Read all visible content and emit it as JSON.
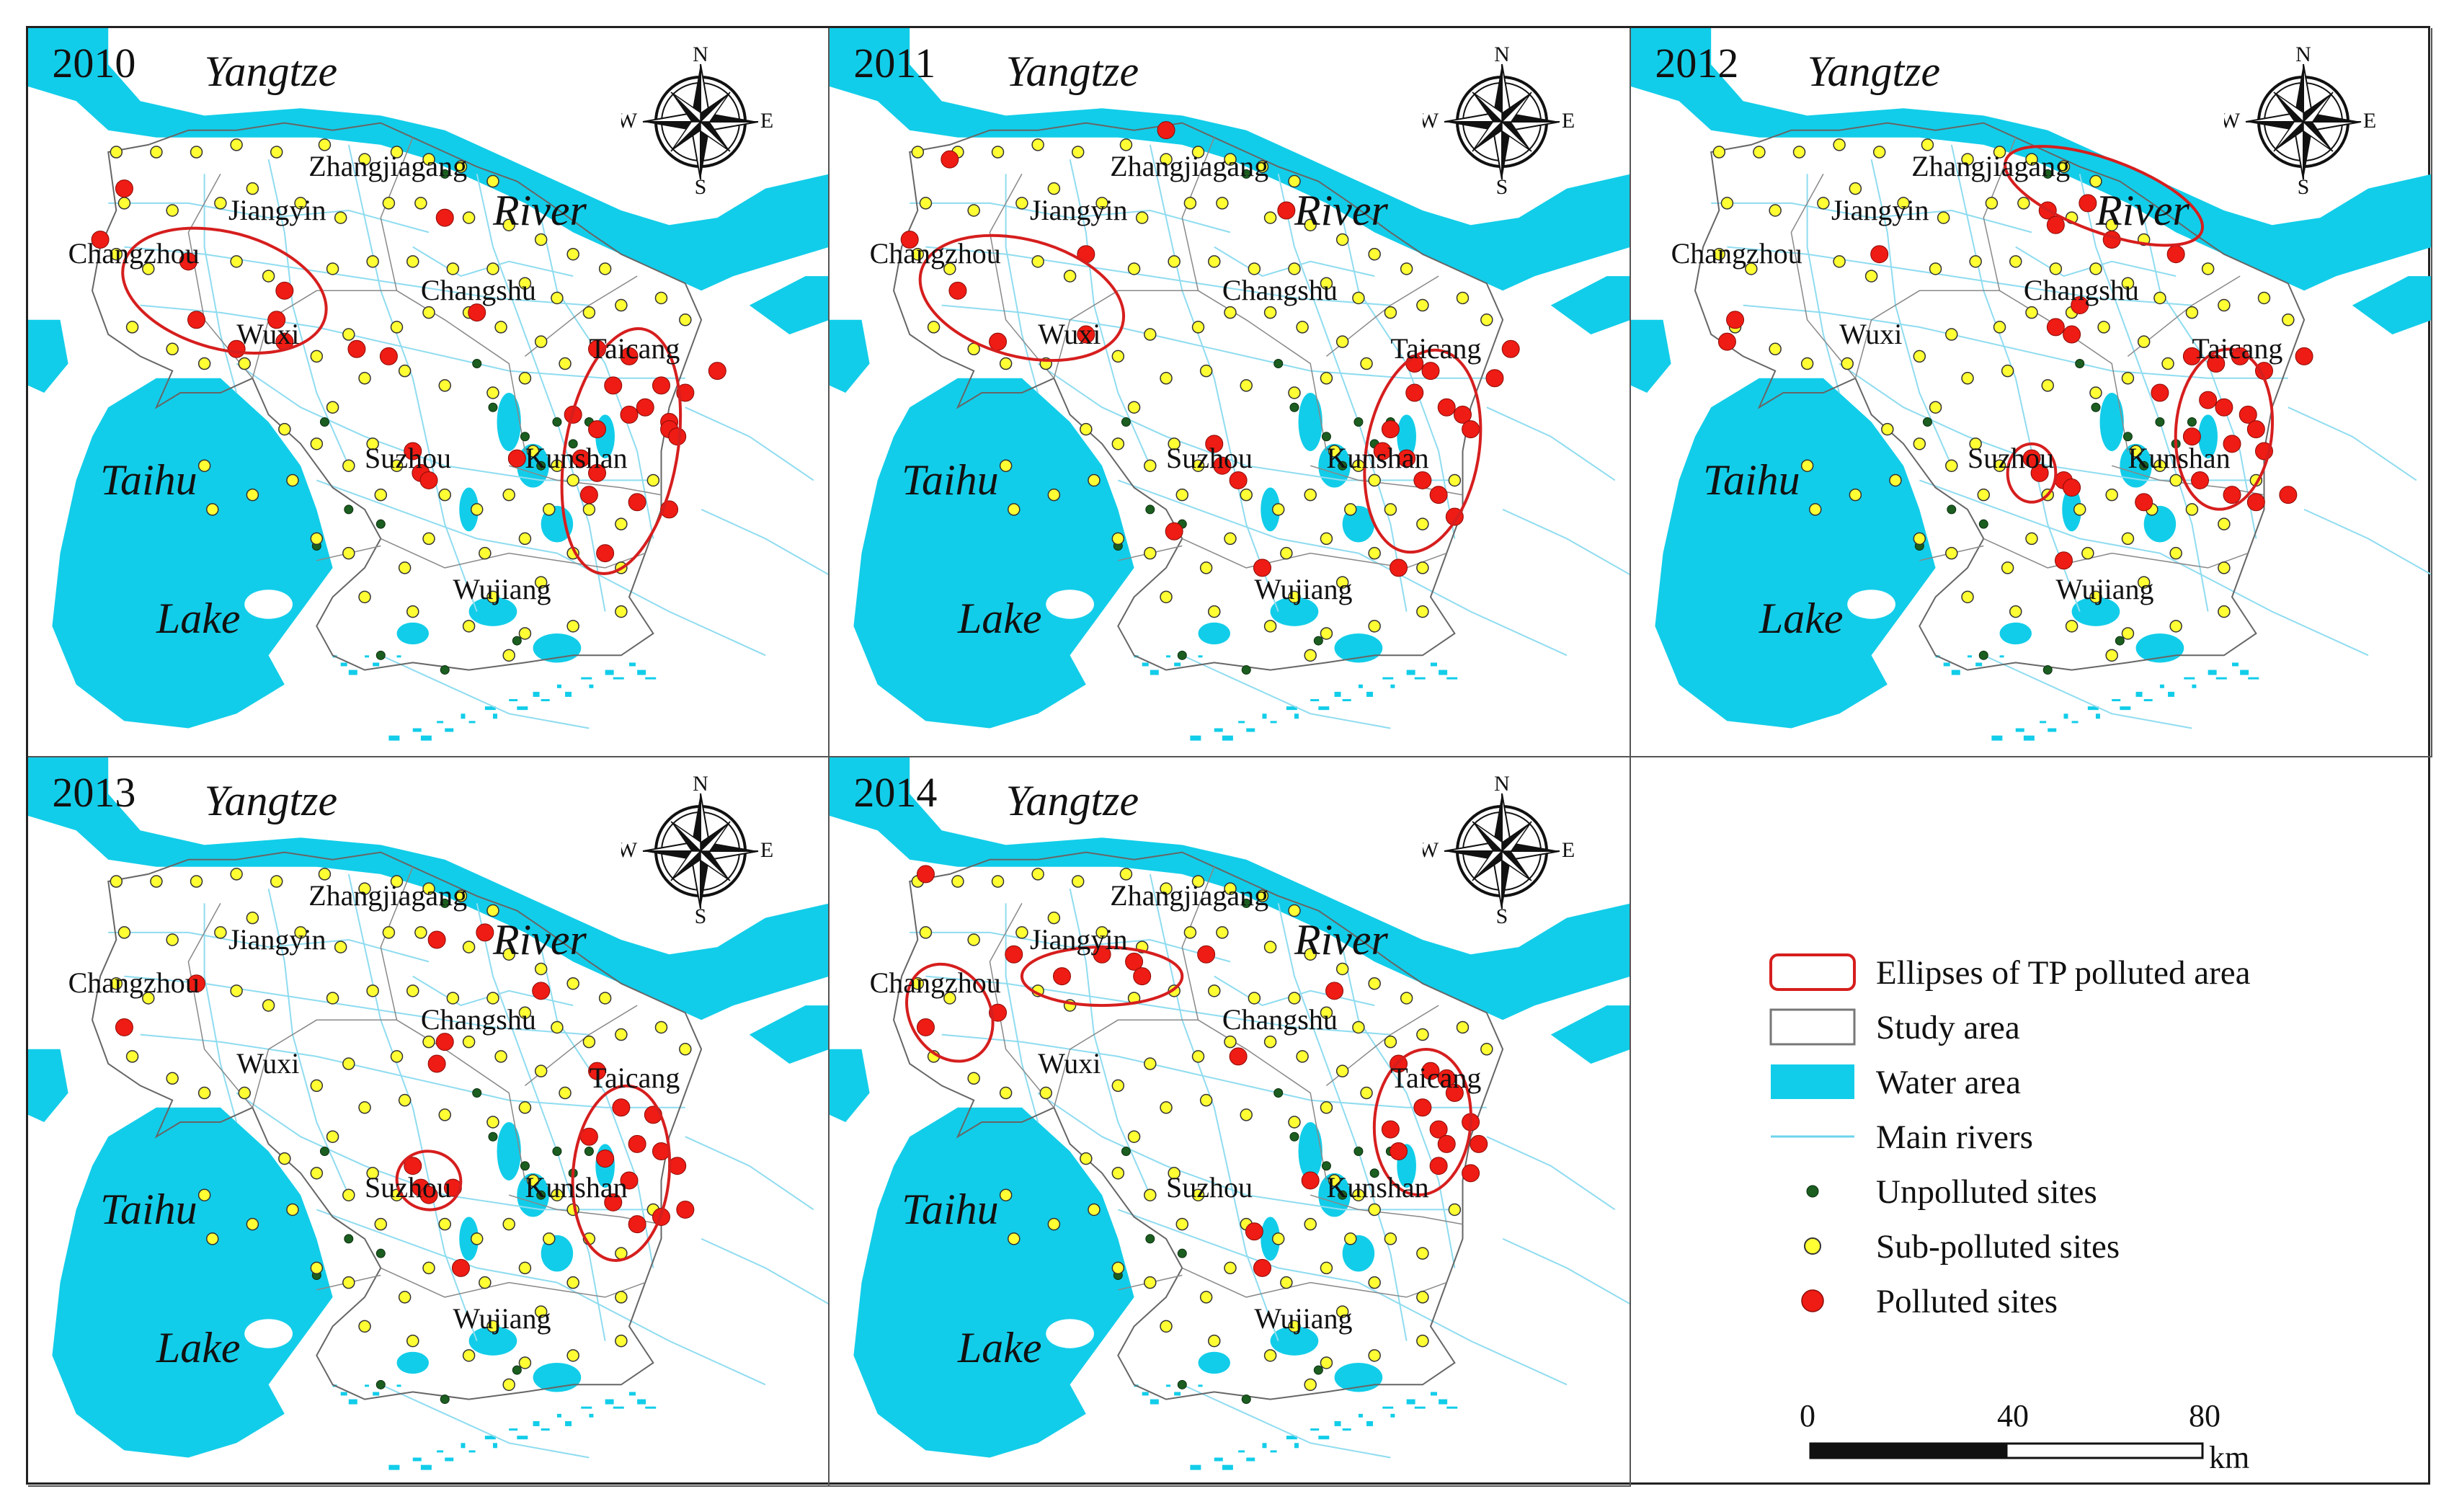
{
  "panels": [
    {
      "year": "2010",
      "polluted": [
        [
          0.12,
          0.22
        ],
        [
          0.09,
          0.29
        ],
        [
          0.2,
          0.32
        ],
        [
          0.32,
          0.36
        ],
        [
          0.31,
          0.4
        ],
        [
          0.21,
          0.4
        ],
        [
          0.32,
          0.43
        ],
        [
          0.26,
          0.44
        ],
        [
          0.41,
          0.44
        ],
        [
          0.45,
          0.45
        ],
        [
          0.52,
          0.26
        ],
        [
          0.56,
          0.39
        ],
        [
          0.71,
          0.44
        ],
        [
          0.75,
          0.45
        ],
        [
          0.73,
          0.49
        ],
        [
          0.79,
          0.49
        ],
        [
          0.77,
          0.52
        ],
        [
          0.82,
          0.5
        ],
        [
          0.86,
          0.47
        ],
        [
          0.68,
          0.53
        ],
        [
          0.71,
          0.55
        ],
        [
          0.75,
          0.53
        ],
        [
          0.8,
          0.54
        ],
        [
          0.8,
          0.55
        ],
        [
          0.81,
          0.56
        ],
        [
          0.69,
          0.59
        ],
        [
          0.71,
          0.61
        ],
        [
          0.7,
          0.64
        ],
        [
          0.76,
          0.65
        ],
        [
          0.8,
          0.66
        ],
        [
          0.72,
          0.72
        ],
        [
          0.48,
          0.58
        ],
        [
          0.49,
          0.61
        ],
        [
          0.5,
          0.62
        ],
        [
          0.61,
          0.59
        ]
      ],
      "ellipses": [
        [
          0.245,
          0.36,
          0.13,
          0.08,
          15
        ],
        [
          0.74,
          0.58,
          0.07,
          0.17,
          10
        ]
      ]
    },
    {
      "year": "2011",
      "polluted": [
        [
          0.15,
          0.18
        ],
        [
          0.1,
          0.29
        ],
        [
          0.16,
          0.36
        ],
        [
          0.32,
          0.31
        ],
        [
          0.42,
          0.14
        ],
        [
          0.57,
          0.25
        ],
        [
          0.21,
          0.43
        ],
        [
          0.32,
          0.42
        ],
        [
          0.73,
          0.46
        ],
        [
          0.75,
          0.47
        ],
        [
          0.73,
          0.5
        ],
        [
          0.77,
          0.52
        ],
        [
          0.79,
          0.53
        ],
        [
          0.8,
          0.55
        ],
        [
          0.83,
          0.48
        ],
        [
          0.85,
          0.44
        ],
        [
          0.7,
          0.55
        ],
        [
          0.69,
          0.58
        ],
        [
          0.72,
          0.59
        ],
        [
          0.74,
          0.62
        ],
        [
          0.76,
          0.64
        ],
        [
          0.78,
          0.67
        ],
        [
          0.48,
          0.57
        ],
        [
          0.49,
          0.6
        ],
        [
          0.51,
          0.62
        ],
        [
          0.43,
          0.69
        ],
        [
          0.54,
          0.74
        ],
        [
          0.71,
          0.74
        ]
      ],
      "ellipses": [
        [
          0.24,
          0.37,
          0.13,
          0.08,
          15
        ],
        [
          0.74,
          0.58,
          0.07,
          0.14,
          10
        ]
      ]
    },
    {
      "year": "2012",
      "polluted": [
        [
          0.31,
          0.31
        ],
        [
          0.13,
          0.4
        ],
        [
          0.12,
          0.43
        ],
        [
          0.52,
          0.25
        ],
        [
          0.53,
          0.27
        ],
        [
          0.57,
          0.24
        ],
        [
          0.6,
          0.29
        ],
        [
          0.68,
          0.31
        ],
        [
          0.53,
          0.41
        ],
        [
          0.55,
          0.42
        ],
        [
          0.56,
          0.38
        ],
        [
          0.7,
          0.45
        ],
        [
          0.73,
          0.46
        ],
        [
          0.76,
          0.45
        ],
        [
          0.79,
          0.47
        ],
        [
          0.84,
          0.45
        ],
        [
          0.66,
          0.5
        ],
        [
          0.72,
          0.51
        ],
        [
          0.74,
          0.52
        ],
        [
          0.77,
          0.53
        ],
        [
          0.7,
          0.56
        ],
        [
          0.75,
          0.57
        ],
        [
          0.78,
          0.55
        ],
        [
          0.79,
          0.58
        ],
        [
          0.71,
          0.62
        ],
        [
          0.75,
          0.64
        ],
        [
          0.78,
          0.65
        ],
        [
          0.82,
          0.64
        ],
        [
          0.64,
          0.65
        ],
        [
          0.5,
          0.59
        ],
        [
          0.51,
          0.61
        ],
        [
          0.54,
          0.62
        ],
        [
          0.55,
          0.63
        ],
        [
          0.54,
          0.73
        ]
      ],
      "ellipses": [
        [
          0.59,
          0.23,
          0.13,
          0.05,
          20
        ],
        [
          0.74,
          0.55,
          0.06,
          0.11,
          5
        ],
        [
          0.5,
          0.61,
          0.03,
          0.04,
          0
        ]
      ]
    },
    {
      "year": "2013",
      "polluted": [
        [
          0.21,
          0.31
        ],
        [
          0.12,
          0.37
        ],
        [
          0.51,
          0.25
        ],
        [
          0.57,
          0.24
        ],
        [
          0.64,
          0.32
        ],
        [
          0.52,
          0.39
        ],
        [
          0.51,
          0.42
        ],
        [
          0.71,
          0.43
        ],
        [
          0.74,
          0.48
        ],
        [
          0.78,
          0.49
        ],
        [
          0.7,
          0.52
        ],
        [
          0.72,
          0.55
        ],
        [
          0.76,
          0.53
        ],
        [
          0.79,
          0.54
        ],
        [
          0.81,
          0.56
        ],
        [
          0.75,
          0.58
        ],
        [
          0.73,
          0.61
        ],
        [
          0.76,
          0.64
        ],
        [
          0.79,
          0.63
        ],
        [
          0.82,
          0.62
        ],
        [
          0.48,
          0.56
        ],
        [
          0.49,
          0.59
        ],
        [
          0.5,
          0.6
        ],
        [
          0.53,
          0.59
        ],
        [
          0.54,
          0.7
        ]
      ],
      "ellipses": [
        [
          0.5,
          0.58,
          0.04,
          0.04,
          10
        ],
        [
          0.74,
          0.57,
          0.06,
          0.12,
          5
        ]
      ]
    },
    {
      "year": "2014",
      "polluted": [
        [
          0.12,
          0.16
        ],
        [
          0.12,
          0.37
        ],
        [
          0.21,
          0.35
        ],
        [
          0.23,
          0.27
        ],
        [
          0.29,
          0.3
        ],
        [
          0.34,
          0.27
        ],
        [
          0.38,
          0.28
        ],
        [
          0.39,
          0.3
        ],
        [
          0.47,
          0.27
        ],
        [
          0.63,
          0.32
        ],
        [
          0.51,
          0.41
        ],
        [
          0.71,
          0.42
        ],
        [
          0.75,
          0.43
        ],
        [
          0.77,
          0.44
        ],
        [
          0.78,
          0.46
        ],
        [
          0.74,
          0.48
        ],
        [
          0.76,
          0.51
        ],
        [
          0.8,
          0.5
        ],
        [
          0.81,
          0.53
        ],
        [
          0.77,
          0.53
        ],
        [
          0.7,
          0.51
        ],
        [
          0.71,
          0.54
        ],
        [
          0.76,
          0.56
        ],
        [
          0.8,
          0.57
        ],
        [
          0.6,
          0.58
        ],
        [
          0.53,
          0.65
        ],
        [
          0.54,
          0.7
        ]
      ],
      "ellipses": [
        [
          0.34,
          0.3,
          0.1,
          0.04,
          0
        ],
        [
          0.15,
          0.35,
          0.05,
          0.07,
          -30
        ],
        [
          0.74,
          0.5,
          0.06,
          0.1,
          5
        ]
      ]
    }
  ],
  "labels": {
    "yangtze": "Yangtze",
    "river": "River",
    "taihu": "Taihu",
    "lake": "Lake",
    "cities": [
      "Changzhou",
      "Jiangyin",
      "Zhangjiagang",
      "Wuxi",
      "Changshu",
      "Taicang",
      "Suzhou",
      "Kunshan",
      "Wujiang"
    ]
  },
  "compass": {
    "n": "N",
    "s": "S",
    "e": "E",
    "w": "W"
  },
  "legend": {
    "items": [
      {
        "label": "Ellipses of TP polluted area",
        "symbol": "ellipse-icon"
      },
      {
        "label": "Study area",
        "symbol": "study-area-icon"
      },
      {
        "label": "Water area",
        "symbol": "water-area-icon"
      },
      {
        "label": "Main rivers",
        "symbol": "river-line-icon"
      },
      {
        "label": "Unpolluted sites",
        "symbol": "dark-green-dot-icon"
      },
      {
        "label": "Sub-polluted sites",
        "symbol": "yellow-dot-icon"
      },
      {
        "label": "Polluted sites",
        "symbol": "red-dot-icon"
      }
    ]
  },
  "scale": {
    "ticks": [
      "0",
      "40",
      "80"
    ],
    "unit": "km"
  },
  "colors": {
    "water": "#12cde9",
    "river": "#9fe3f2",
    "boundary": "#666666",
    "unpolluted": "#1b5e20",
    "subpolluted": "#ffff33",
    "polluted": "#ee1c14",
    "ellipse": "#d61e1e"
  }
}
